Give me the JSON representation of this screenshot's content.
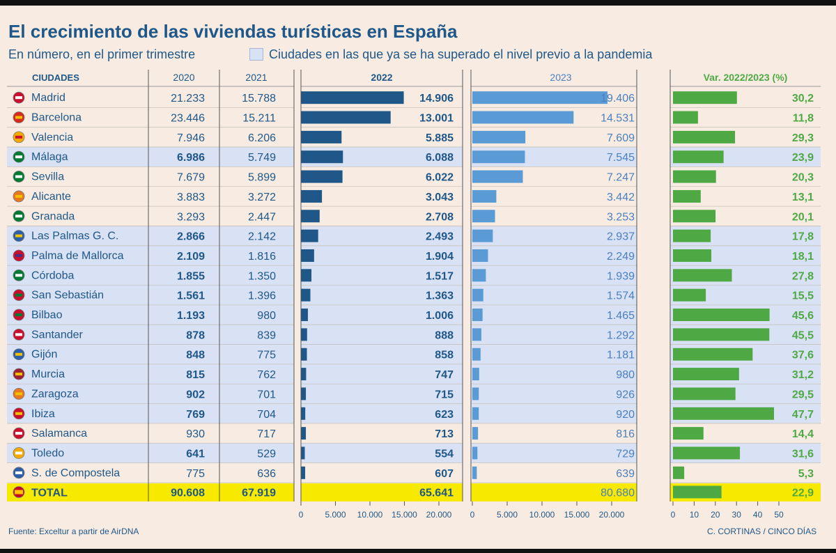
{
  "header": {
    "title": "El crecimiento de las viviendas turísticas en España",
    "subtitle": "En número, en el primer trimestre",
    "legend_label": "Ciudades en las que ya se ha superado el nivel previo a la pandemia"
  },
  "columns": {
    "city": "CIUDADES",
    "y2020": "2020",
    "y2021": "2021",
    "y2022": "2022",
    "y2023": "2023",
    "var": "Var. 2022/2023 (%)"
  },
  "colors": {
    "background": "#f8ece2",
    "highlight_row": "#d9e1f5",
    "total_row": "#f7ea00",
    "bar_2022": "#1e5788",
    "bar_2023": "#5b9bd5",
    "bar_var": "#4ea944",
    "text_primary": "#1e5788",
    "text_2023": "#4a7fc0"
  },
  "chart_data": {
    "type": "table",
    "rows": [
      {
        "city": "Madrid",
        "y2020": "21.233",
        "y2021": "15.788",
        "y2022": "14.906",
        "y2023": "19.406",
        "var": "30,2",
        "v2022": 14906,
        "v2023": 19406,
        "vvar": 30.2,
        "highlight": false,
        "bold2020": false,
        "icon": "madrid-crest-icon",
        "c1": "#c8102e",
        "c2": "#ffffff"
      },
      {
        "city": "Barcelona",
        "y2020": "23.446",
        "y2021": "15.211",
        "y2022": "13.001",
        "y2023": "14.531",
        "var": "11,8",
        "v2022": 13001,
        "v2023": 14531,
        "vvar": 11.8,
        "highlight": false,
        "bold2020": false,
        "icon": "barcelona-crest-icon",
        "c1": "#d52b1e",
        "c2": "#f2c200"
      },
      {
        "city": "Valencia",
        "y2020": "7.946",
        "y2021": "6.206",
        "y2022": "5.885",
        "y2023": "7.609",
        "var": "29,3",
        "v2022": 5885,
        "v2023": 7609,
        "vvar": 29.3,
        "highlight": false,
        "bold2020": false,
        "icon": "valencia-crest-icon",
        "c1": "#f2a900",
        "c2": "#c8102e"
      },
      {
        "city": "Málaga",
        "y2020": "6.986",
        "y2021": "5.749",
        "y2022": "6.088",
        "y2023": "7.545",
        "var": "23,9",
        "v2022": 6088,
        "v2023": 7545,
        "vvar": 23.9,
        "highlight": true,
        "bold2020": true,
        "icon": "malaga-crest-icon",
        "c1": "#007a33",
        "c2": "#ffffff"
      },
      {
        "city": "Sevilla",
        "y2020": "7.679",
        "y2021": "5.899",
        "y2022": "6.022",
        "y2023": "7.247",
        "var": "20,3",
        "v2022": 6022,
        "v2023": 7247,
        "vvar": 20.3,
        "highlight": false,
        "bold2020": false,
        "icon": "sevilla-crest-icon",
        "c1": "#007a33",
        "c2": "#ffffff"
      },
      {
        "city": "Alicante",
        "y2020": "3.883",
        "y2021": "3.272",
        "y2022": "3.043",
        "y2023": "3.442",
        "var": "13,1",
        "v2022": 3043,
        "v2023": 3442,
        "vvar": 13.1,
        "highlight": false,
        "bold2020": false,
        "icon": "alicante-crest-icon",
        "c1": "#e87722",
        "c2": "#f2c200"
      },
      {
        "city": "Granada",
        "y2020": "3.293",
        "y2021": "2.447",
        "y2022": "2.708",
        "y2023": "3.253",
        "var": "20,1",
        "v2022": 2708,
        "v2023": 3253,
        "vvar": 20.1,
        "highlight": false,
        "bold2020": false,
        "icon": "granada-crest-icon",
        "c1": "#007a33",
        "c2": "#ffffff"
      },
      {
        "city": "Las Palmas G. C.",
        "y2020": "2.866",
        "y2021": "2.142",
        "y2022": "2.493",
        "y2023": "2.937",
        "var": "17,8",
        "v2022": 2493,
        "v2023": 2937,
        "vvar": 17.8,
        "highlight": true,
        "bold2020": true,
        "icon": "las-palmas-crest-icon",
        "c1": "#2b5fa8",
        "c2": "#f2c200"
      },
      {
        "city": "Palma de Mallorca",
        "y2020": "2.109",
        "y2021": "1.816",
        "y2022": "1.904",
        "y2023": "2.249",
        "var": "18,1",
        "v2022": 1904,
        "v2023": 2249,
        "vvar": 18.1,
        "highlight": true,
        "bold2020": true,
        "icon": "palma-crest-icon",
        "c1": "#c8102e",
        "c2": "#4b2d83"
      },
      {
        "city": "Córdoba",
        "y2020": "1.855",
        "y2021": "1.350",
        "y2022": "1.517",
        "y2023": "1.939",
        "var": "27,8",
        "v2022": 1517,
        "v2023": 1939,
        "vvar": 27.8,
        "highlight": true,
        "bold2020": true,
        "icon": "cordoba-crest-icon",
        "c1": "#007a33",
        "c2": "#ffffff"
      },
      {
        "city": "San Sebastián",
        "y2020": "1.561",
        "y2021": "1.396",
        "y2022": "1.363",
        "y2023": "1.574",
        "var": "15,5",
        "v2022": 1363,
        "v2023": 1574,
        "vvar": 15.5,
        "highlight": true,
        "bold2020": true,
        "icon": "san-sebastian-crest-icon",
        "c1": "#c8102e",
        "c2": "#007a33"
      },
      {
        "city": "Bilbao",
        "y2020": "1.193",
        "y2021": "980",
        "y2022": "1.006",
        "y2023": "1.465",
        "var": "45,6",
        "v2022": 1006,
        "v2023": 1465,
        "vvar": 45.6,
        "highlight": true,
        "bold2020": true,
        "icon": "bilbao-crest-icon",
        "c1": "#c8102e",
        "c2": "#007a33"
      },
      {
        "city": "Santander",
        "y2020": "878",
        "y2021": "839",
        "y2022": "888",
        "y2023": "1.292",
        "var": "45,5",
        "v2022": 888,
        "v2023": 1292,
        "vvar": 45.5,
        "highlight": true,
        "bold2020": true,
        "icon": "santander-crest-icon",
        "c1": "#c8102e",
        "c2": "#ffffff"
      },
      {
        "city": "Gijón",
        "y2020": "848",
        "y2021": "775",
        "y2022": "858",
        "y2023": "1.181",
        "var": "37,6",
        "v2022": 858,
        "v2023": 1181,
        "vvar": 37.6,
        "highlight": true,
        "bold2020": true,
        "icon": "gijon-crest-icon",
        "c1": "#2b5fa8",
        "c2": "#f2c200"
      },
      {
        "city": "Murcia",
        "y2020": "815",
        "y2021": "762",
        "y2022": "747",
        "y2023": "980",
        "var": "31,2",
        "v2022": 747,
        "v2023": 980,
        "vvar": 31.2,
        "highlight": true,
        "bold2020": true,
        "icon": "murcia-crest-icon",
        "c1": "#9b2335",
        "c2": "#f2c200"
      },
      {
        "city": "Zaragoza",
        "y2020": "902",
        "y2021": "701",
        "y2022": "715",
        "y2023": "926",
        "var": "29,5",
        "v2022": 715,
        "v2023": 926,
        "vvar": 29.5,
        "highlight": true,
        "bold2020": true,
        "icon": "zaragoza-crest-icon",
        "c1": "#e87722",
        "c2": "#f2c200"
      },
      {
        "city": "Ibiza",
        "y2020": "769",
        "y2021": "704",
        "y2022": "623",
        "y2023": "920",
        "var": "47,7",
        "v2022": 623,
        "v2023": 920,
        "vvar": 47.7,
        "highlight": true,
        "bold2020": true,
        "icon": "ibiza-crest-icon",
        "c1": "#c8102e",
        "c2": "#f2c200"
      },
      {
        "city": "Salamanca",
        "y2020": "930",
        "y2021": "717",
        "y2022": "713",
        "y2023": "816",
        "var": "14,4",
        "v2022": 713,
        "v2023": 816,
        "vvar": 14.4,
        "highlight": false,
        "bold2020": false,
        "icon": "salamanca-crest-icon",
        "c1": "#c8102e",
        "c2": "#ffffff"
      },
      {
        "city": "Toledo",
        "y2020": "641",
        "y2021": "529",
        "y2022": "554",
        "y2023": "729",
        "var": "31,6",
        "v2022": 554,
        "v2023": 729,
        "vvar": 31.6,
        "highlight": true,
        "bold2020": true,
        "icon": "toledo-crest-icon",
        "c1": "#f2a900",
        "c2": "#ffffff"
      },
      {
        "city": "S. de Compostela",
        "y2020": "775",
        "y2021": "636",
        "y2022": "607",
        "y2023": "639",
        "var": "5,3",
        "v2022": 607,
        "v2023": 639,
        "vvar": 5.3,
        "highlight": false,
        "bold2020": false,
        "icon": "compostela-crest-icon",
        "c1": "#2b5fa8",
        "c2": "#ffffff"
      }
    ],
    "total": {
      "city": "TOTAL",
      "y2020": "90.608",
      "y2021": "67.919",
      "y2022": "65.641",
      "y2023": "80.680",
      "var": "22,9",
      "vvar": 22.9,
      "icon": "spain-crest-icon"
    },
    "axis_2022": {
      "min": 0,
      "max": 20000,
      "ticks": [
        0,
        5000,
        10000,
        15000,
        20000
      ],
      "tick_labels": [
        "0",
        "5.000",
        "10.000",
        "15.000",
        "20.000"
      ]
    },
    "axis_2023": {
      "min": 0,
      "max": 20000,
      "ticks": [
        0,
        5000,
        10000,
        15000,
        20000
      ],
      "tick_labels": [
        "0",
        "5.000",
        "10.000",
        "15.000",
        "20.000"
      ]
    },
    "axis_var": {
      "min": 0,
      "max": 50,
      "ticks": [
        0,
        10,
        20,
        30,
        40,
        50
      ],
      "tick_labels": [
        "0",
        "10",
        "20",
        "30",
        "40",
        "50"
      ]
    }
  },
  "footer": {
    "source": "Fuente: Exceltur a partir de AirDNA",
    "credit": "C. CORTINAS / CINCO DÍAS"
  }
}
